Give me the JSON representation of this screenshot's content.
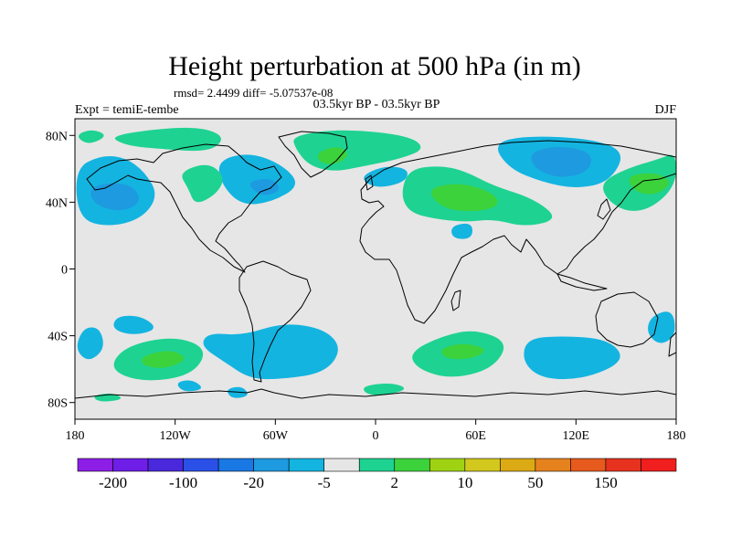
{
  "figure": {
    "title": "Height perturbation at 500 hPa (in m)",
    "stats": "rmsd= 2.4499 diff= -5.07537e-08",
    "left_label": "Expt = temiE-tembe",
    "center_label": "03.5kyr BP - 03.5kyr BP",
    "right_label": "DJF"
  },
  "chart_data": {
    "type": "heatmap",
    "projection": "cylindrical-equidistant",
    "lon_range": [
      -180,
      180
    ],
    "lat_range": [
      -90,
      90
    ],
    "x_ticks": [
      {
        "value": -180,
        "label": "180"
      },
      {
        "value": -120,
        "label": "120W"
      },
      {
        "value": -60,
        "label": "60W"
      },
      {
        "value": 0,
        "label": "0"
      },
      {
        "value": 60,
        "label": "60E"
      },
      {
        "value": 120,
        "label": "120E"
      },
      {
        "value": 180,
        "label": "180"
      }
    ],
    "y_ticks": [
      {
        "value": 80,
        "label": "80N"
      },
      {
        "value": 40,
        "label": "40N"
      },
      {
        "value": 0,
        "label": "0"
      },
      {
        "value": -40,
        "label": "40S"
      },
      {
        "value": -80,
        "label": "80S"
      }
    ],
    "colorbar": {
      "colors": [
        "#8c1ee6",
        "#6e1ee6",
        "#4a28dc",
        "#2a50e8",
        "#1a78e4",
        "#1e9ae0",
        "#14b4e0",
        "#e6e6e6",
        "#1ed292",
        "#3cd23c",
        "#a0d214",
        "#d2c81e",
        "#dcaa14",
        "#e6821e",
        "#e65a1e",
        "#e6321e",
        "#f01e1e"
      ],
      "labels": [
        {
          "index": 1,
          "text": "-200"
        },
        {
          "index": 3,
          "text": "-100"
        },
        {
          "index": 5,
          "text": "-20"
        },
        {
          "index": 7,
          "text": "-5"
        },
        {
          "index": 9,
          "text": "2"
        },
        {
          "index": 11,
          "text": "10"
        },
        {
          "index": 13,
          "text": "50"
        },
        {
          "index": 15,
          "text": "150"
        }
      ]
    },
    "palette": {
      "neutral": "#e6e6e6",
      "light_blue": "#14b4e0",
      "blue": "#1e9ae0",
      "green": "#1ed292",
      "bright_green": "#3cd23c"
    },
    "anomalies": [
      {
        "sign": "negative",
        "level": 1,
        "points": [
          [
            -180,
            60
          ],
          [
            -165,
            68
          ],
          [
            -150,
            67
          ],
          [
            -138,
            58
          ],
          [
            -130,
            44
          ],
          [
            -140,
            30
          ],
          [
            -160,
            25
          ],
          [
            -178,
            30
          ]
        ]
      },
      {
        "sign": "negative",
        "level": 2,
        "points": [
          [
            -172,
            48
          ],
          [
            -160,
            52
          ],
          [
            -145,
            50
          ],
          [
            -140,
            40
          ],
          [
            -152,
            34
          ],
          [
            -168,
            38
          ]
        ]
      },
      {
        "sign": "negative",
        "level": 1,
        "points": [
          [
            -95,
            65
          ],
          [
            -75,
            70
          ],
          [
            -55,
            62
          ],
          [
            -45,
            50
          ],
          [
            -62,
            40
          ],
          [
            -80,
            38
          ],
          [
            -92,
            50
          ]
        ]
      },
      {
        "sign": "negative",
        "level": 2,
        "points": [
          [
            -78,
            52
          ],
          [
            -62,
            55
          ],
          [
            -56,
            47
          ],
          [
            -68,
            43
          ]
        ]
      },
      {
        "sign": "negative",
        "level": 1,
        "points": [
          [
            -10,
            55
          ],
          [
            5,
            62
          ],
          [
            20,
            60
          ],
          [
            18,
            52
          ],
          [
            0,
            48
          ]
        ]
      },
      {
        "sign": "negative",
        "level": 1,
        "points": [
          [
            70,
            75
          ],
          [
            90,
            80
          ],
          [
            130,
            78
          ],
          [
            150,
            70
          ],
          [
            140,
            52
          ],
          [
            120,
            48
          ],
          [
            100,
            52
          ],
          [
            80,
            60
          ]
        ]
      },
      {
        "sign": "negative",
        "level": 2,
        "points": [
          [
            92,
            70
          ],
          [
            110,
            74
          ],
          [
            130,
            70
          ],
          [
            128,
            58
          ],
          [
            110,
            54
          ],
          [
            95,
            60
          ]
        ]
      },
      {
        "sign": "negative",
        "level": 1,
        "points": [
          [
            45,
            26
          ],
          [
            58,
            28
          ],
          [
            58,
            18
          ],
          [
            46,
            18
          ]
        ]
      },
      {
        "sign": "negative",
        "level": 1,
        "points": [
          [
            -155,
            -28
          ],
          [
            -140,
            -28
          ],
          [
            -130,
            -36
          ],
          [
            -145,
            -40
          ],
          [
            -158,
            -36
          ]
        ]
      },
      {
        "sign": "negative",
        "level": 1,
        "points": [
          [
            -100,
            -38
          ],
          [
            -80,
            -40
          ],
          [
            -55,
            -32
          ],
          [
            -30,
            -36
          ],
          [
            -20,
            -48
          ],
          [
            -30,
            -62
          ],
          [
            -55,
            -66
          ],
          [
            -75,
            -66
          ],
          [
            -90,
            -56
          ],
          [
            -105,
            -46
          ]
        ]
      },
      {
        "sign": "negative",
        "level": 1,
        "points": [
          [
            -180,
            -48
          ],
          [
            -175,
            -35
          ],
          [
            -165,
            -35
          ],
          [
            -162,
            -48
          ],
          [
            -172,
            -56
          ]
        ]
      },
      {
        "sign": "negative",
        "level": 1,
        "points": [
          [
            90,
            -42
          ],
          [
            110,
            -40
          ],
          [
            140,
            -42
          ],
          [
            150,
            -55
          ],
          [
            125,
            -66
          ],
          [
            100,
            -66
          ],
          [
            88,
            -56
          ]
        ]
      },
      {
        "sign": "negative",
        "level": 1,
        "points": [
          [
            165,
            -28
          ],
          [
            178,
            -24
          ],
          [
            180,
            -40
          ],
          [
            170,
            -46
          ],
          [
            162,
            -38
          ]
        ]
      },
      {
        "sign": "negative",
        "level": 1,
        "points": [
          [
            -120,
            -68
          ],
          [
            -110,
            -66
          ],
          [
            -102,
            -72
          ],
          [
            -115,
            -74
          ]
        ]
      },
      {
        "sign": "negative",
        "level": 1,
        "points": [
          [
            -90,
            -72
          ],
          [
            -80,
            -70
          ],
          [
            -75,
            -76
          ],
          [
            -86,
            -78
          ]
        ]
      },
      {
        "sign": "positive",
        "level": 1,
        "points": [
          [
            -160,
            80
          ],
          [
            -120,
            85
          ],
          [
            -100,
            84
          ],
          [
            -90,
            78
          ],
          [
            -100,
            70
          ],
          [
            -130,
            72
          ],
          [
            -150,
            74
          ]
        ]
      },
      {
        "sign": "positive",
        "level": 1,
        "points": [
          [
            -118,
            58
          ],
          [
            -100,
            64
          ],
          [
            -90,
            55
          ],
          [
            -95,
            45
          ],
          [
            -108,
            38
          ],
          [
            -112,
            48
          ]
        ]
      },
      {
        "sign": "positive",
        "level": 1,
        "points": [
          [
            -50,
            80
          ],
          [
            -20,
            84
          ],
          [
            20,
            80
          ],
          [
            30,
            72
          ],
          [
            15,
            66
          ],
          [
            -5,
            62
          ],
          [
            -25,
            58
          ],
          [
            -40,
            62
          ],
          [
            -48,
            72
          ]
        ]
      },
      {
        "sign": "positive",
        "level": 2,
        "points": [
          [
            -35,
            70
          ],
          [
            -22,
            74
          ],
          [
            -15,
            68
          ],
          [
            -25,
            62
          ],
          [
            -34,
            64
          ]
        ]
      },
      {
        "sign": "positive",
        "level": 1,
        "points": [
          [
            20,
            60
          ],
          [
            40,
            62
          ],
          [
            55,
            58
          ],
          [
            70,
            50
          ],
          [
            95,
            42
          ],
          [
            110,
            30
          ],
          [
            90,
            25
          ],
          [
            70,
            30
          ],
          [
            55,
            28
          ],
          [
            35,
            30
          ],
          [
            20,
            34
          ],
          [
            15,
            45
          ]
        ]
      },
      {
        "sign": "positive",
        "level": 2,
        "points": [
          [
            30,
            48
          ],
          [
            50,
            52
          ],
          [
            70,
            46
          ],
          [
            75,
            38
          ],
          [
            60,
            34
          ],
          [
            40,
            36
          ]
        ]
      },
      {
        "sign": "positive",
        "level": 1,
        "points": [
          [
            135,
            52
          ],
          [
            150,
            60
          ],
          [
            170,
            66
          ],
          [
            180,
            70
          ],
          [
            180,
            50
          ],
          [
            165,
            36
          ],
          [
            150,
            34
          ],
          [
            138,
            42
          ]
        ]
      },
      {
        "sign": "positive",
        "level": 2,
        "points": [
          [
            150,
            56
          ],
          [
            168,
            58
          ],
          [
            178,
            52
          ],
          [
            168,
            44
          ],
          [
            155,
            46
          ]
        ]
      },
      {
        "sign": "positive",
        "level": 1,
        "points": [
          [
            -180,
            80
          ],
          [
            -170,
            84
          ],
          [
            -160,
            80
          ],
          [
            -172,
            74
          ]
        ]
      },
      {
        "sign": "positive",
        "level": 1,
        "points": [
          [
            -150,
            -46
          ],
          [
            -120,
            -40
          ],
          [
            -100,
            -48
          ],
          [
            -110,
            -64
          ],
          [
            -140,
            -68
          ],
          [
            -160,
            -60
          ]
        ]
      },
      {
        "sign": "positive",
        "level": 2,
        "points": [
          [
            -140,
            -52
          ],
          [
            -122,
            -48
          ],
          [
            -112,
            -54
          ],
          [
            -126,
            -60
          ],
          [
            -140,
            -58
          ]
        ]
      },
      {
        "sign": "positive",
        "level": 1,
        "points": [
          [
            20,
            -50
          ],
          [
            40,
            -40
          ],
          [
            60,
            -36
          ],
          [
            80,
            -44
          ],
          [
            70,
            -60
          ],
          [
            45,
            -66
          ],
          [
            25,
            -60
          ]
        ]
      },
      {
        "sign": "positive",
        "level": 2,
        "points": [
          [
            38,
            -48
          ],
          [
            52,
            -44
          ],
          [
            68,
            -48
          ],
          [
            58,
            -54
          ],
          [
            42,
            -54
          ]
        ]
      },
      {
        "sign": "positive",
        "level": 1,
        "points": [
          [
            -8,
            -70
          ],
          [
            10,
            -68
          ],
          [
            20,
            -72
          ],
          [
            5,
            -76
          ],
          [
            -6,
            -75
          ]
        ]
      },
      {
        "sign": "positive",
        "level": 1,
        "points": [
          [
            -170,
            -76
          ],
          [
            -158,
            -74
          ],
          [
            -150,
            -78
          ],
          [
            -165,
            -80
          ]
        ]
      }
    ]
  }
}
